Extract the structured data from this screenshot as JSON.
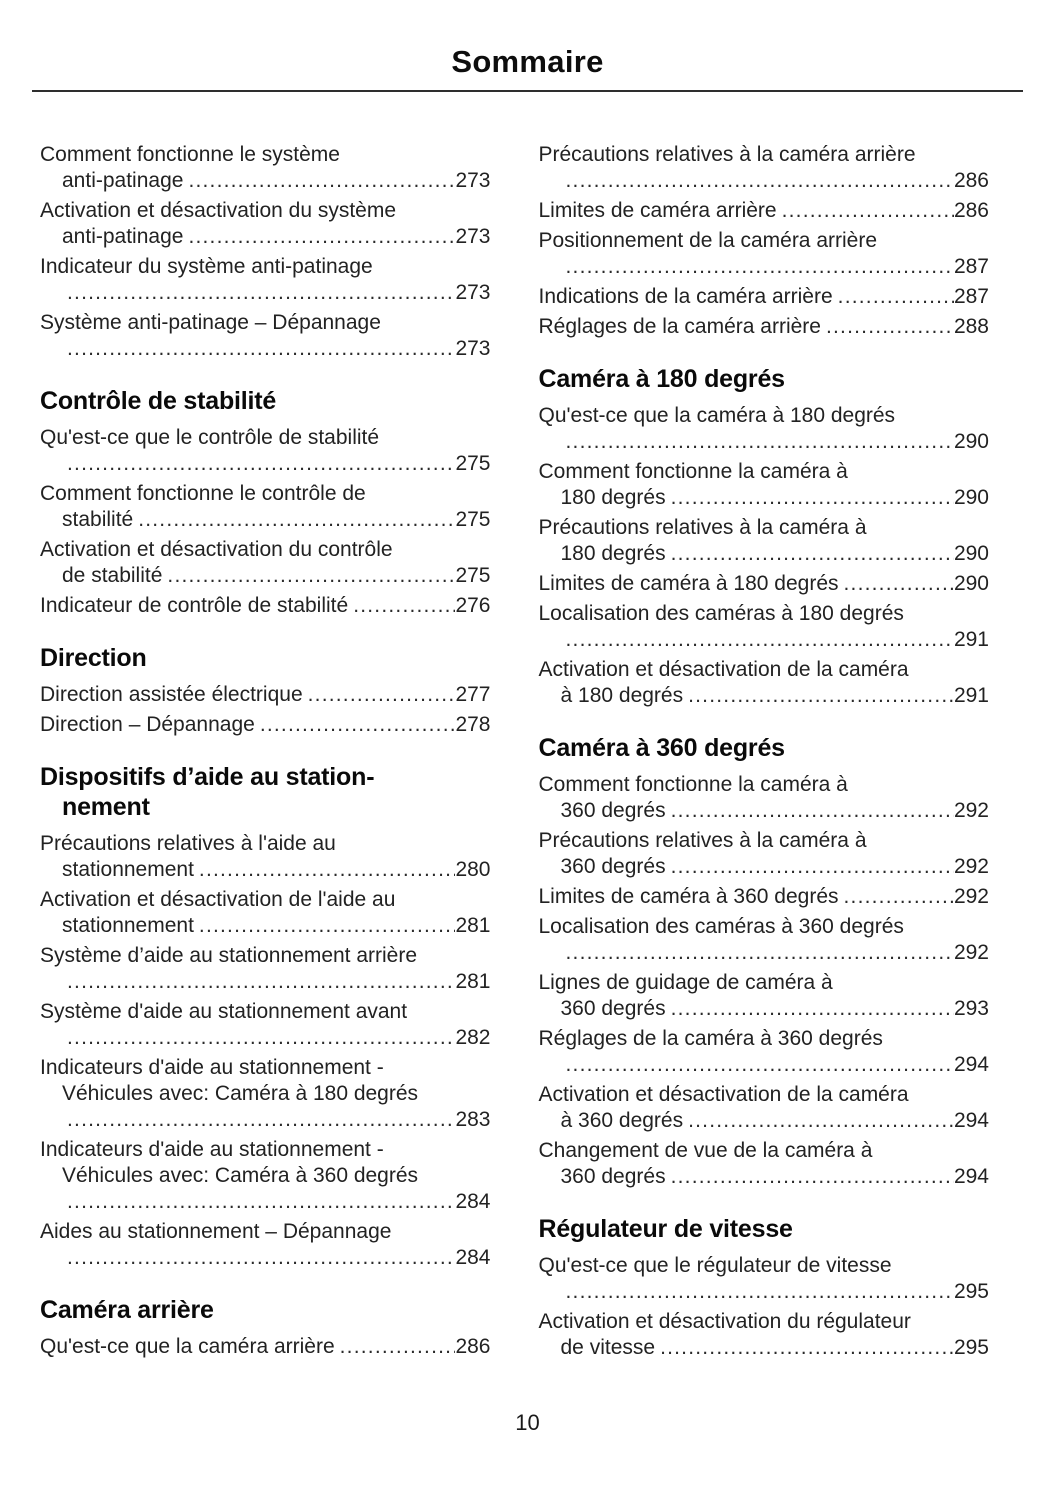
{
  "page": {
    "title": "Sommaire",
    "page_number": "10"
  },
  "columns": [
    {
      "sections": [
        {
          "heading_lines": [],
          "entries": [
            {
              "lines": [
                "Comment fonctionne le système",
                "anti-patinage"
              ],
              "page": "273",
              "leader_own_line": false
            },
            {
              "lines": [
                "Activation et désactivation du système",
                "anti-patinage"
              ],
              "page": "273",
              "leader_own_line": false
            },
            {
              "lines": [
                "Indicateur du système anti-patinage"
              ],
              "page": "273",
              "leader_own_line": true
            },
            {
              "lines": [
                "Système anti-patinage – Dépannage"
              ],
              "page": "273",
              "leader_own_line": true
            }
          ]
        },
        {
          "heading_lines": [
            "Contrôle de stabilité"
          ],
          "entries": [
            {
              "lines": [
                "Qu'est-ce que le contrôle de stabilité"
              ],
              "page": "275",
              "leader_own_line": true
            },
            {
              "lines": [
                "Comment fonctionne le contrôle de",
                "stabilité"
              ],
              "page": "275",
              "leader_own_line": false
            },
            {
              "lines": [
                "Activation et désactivation du contrôle",
                "de stabilité"
              ],
              "page": "275",
              "leader_own_line": false
            },
            {
              "lines": [
                "Indicateur de contrôle de stabilité"
              ],
              "page": "276",
              "leader_own_line": false
            }
          ]
        },
        {
          "heading_lines": [
            "Direction"
          ],
          "entries": [
            {
              "lines": [
                "Direction assistée électrique"
              ],
              "page": "277",
              "leader_own_line": false
            },
            {
              "lines": [
                "Direction – Dépannage"
              ],
              "page": "278",
              "leader_own_line": false
            }
          ]
        },
        {
          "heading_lines": [
            "Dispositifs d’aide au station-",
            "nement"
          ],
          "entries": [
            {
              "lines": [
                "Précautions relatives à l'aide au",
                "stationnement"
              ],
              "page": "280",
              "leader_own_line": false
            },
            {
              "lines": [
                "Activation et désactivation de l'aide au",
                "stationnement"
              ],
              "page": "281",
              "leader_own_line": false
            },
            {
              "lines": [
                "Système d’aide au stationnement arrière"
              ],
              "page": "281",
              "leader_own_line": true
            },
            {
              "lines": [
                "Système d'aide au stationnement avant"
              ],
              "page": "282",
              "leader_own_line": true
            },
            {
              "lines": [
                "Indicateurs d'aide au stationnement -",
                "Véhicules avec: Caméra à 180 degrés"
              ],
              "page": "283",
              "leader_own_line": true
            },
            {
              "lines": [
                "Indicateurs d'aide au stationnement -",
                "Véhicules avec: Caméra à 360 degrés"
              ],
              "page": "284",
              "leader_own_line": true
            },
            {
              "lines": [
                "Aides au stationnement – Dépannage"
              ],
              "page": "284",
              "leader_own_line": true
            }
          ]
        },
        {
          "heading_lines": [
            "Caméra arrière"
          ],
          "entries": [
            {
              "lines": [
                "Qu'est-ce que la caméra arrière"
              ],
              "page": "286",
              "leader_own_line": false
            }
          ]
        }
      ]
    },
    {
      "sections": [
        {
          "heading_lines": [],
          "entries": [
            {
              "lines": [
                "Précautions relatives à la caméra arrière"
              ],
              "page": "286",
              "leader_own_line": true
            },
            {
              "lines": [
                "Limites de caméra arrière"
              ],
              "page": "286",
              "leader_own_line": false
            },
            {
              "lines": [
                "Positionnement de la caméra arrière"
              ],
              "page": "287",
              "leader_own_line": true
            },
            {
              "lines": [
                "Indications de la caméra arrière"
              ],
              "page": "287",
              "leader_own_line": false
            },
            {
              "lines": [
                "Réglages de la caméra arrière"
              ],
              "page": "288",
              "leader_own_line": false
            }
          ]
        },
        {
          "heading_lines": [
            "Caméra à 180 degrés"
          ],
          "entries": [
            {
              "lines": [
                "Qu'est-ce que la caméra à 180 degrés"
              ],
              "page": "290",
              "leader_own_line": true
            },
            {
              "lines": [
                "Comment fonctionne la caméra à",
                "180 degrés"
              ],
              "page": "290",
              "leader_own_line": false
            },
            {
              "lines": [
                "Précautions relatives à la caméra à",
                "180 degrés"
              ],
              "page": "290",
              "leader_own_line": false
            },
            {
              "lines": [
                "Limites de caméra à 180 degrés"
              ],
              "page": "290",
              "leader_own_line": false
            },
            {
              "lines": [
                "Localisation des caméras à 180 degrés"
              ],
              "page": "291",
              "leader_own_line": true
            },
            {
              "lines": [
                "Activation et désactivation de la caméra",
                "à 180 degrés"
              ],
              "page": "291",
              "leader_own_line": false
            }
          ]
        },
        {
          "heading_lines": [
            "Caméra à 360 degrés"
          ],
          "entries": [
            {
              "lines": [
                "Comment fonctionne la caméra à",
                "360 degrés"
              ],
              "page": "292",
              "leader_own_line": false
            },
            {
              "lines": [
                "Précautions relatives à la caméra à",
                "360 degrés"
              ],
              "page": "292",
              "leader_own_line": false
            },
            {
              "lines": [
                "Limites de caméra à 360 degrés"
              ],
              "page": "292",
              "leader_own_line": false
            },
            {
              "lines": [
                "Localisation des caméras à 360 degrés"
              ],
              "page": "292",
              "leader_own_line": true
            },
            {
              "lines": [
                "Lignes de guidage de caméra à",
                "360 degrés"
              ],
              "page": "293",
              "leader_own_line": false
            },
            {
              "lines": [
                "Réglages de la caméra à 360 degrés"
              ],
              "page": "294",
              "leader_own_line": true
            },
            {
              "lines": [
                "Activation et désactivation de la caméra",
                "à 360 degrés"
              ],
              "page": "294",
              "leader_own_line": false
            },
            {
              "lines": [
                "Changement de vue de la caméra à",
                "360 degrés"
              ],
              "page": "294",
              "leader_own_line": false
            }
          ]
        },
        {
          "heading_lines": [
            "Régulateur de vitesse"
          ],
          "entries": [
            {
              "lines": [
                "Qu'est-ce que le régulateur de vitesse"
              ],
              "page": "295",
              "leader_own_line": true
            },
            {
              "lines": [
                "Activation et désactivation du régulateur",
                "de vitesse"
              ],
              "page": "295",
              "leader_own_line": false
            }
          ]
        }
      ]
    }
  ]
}
